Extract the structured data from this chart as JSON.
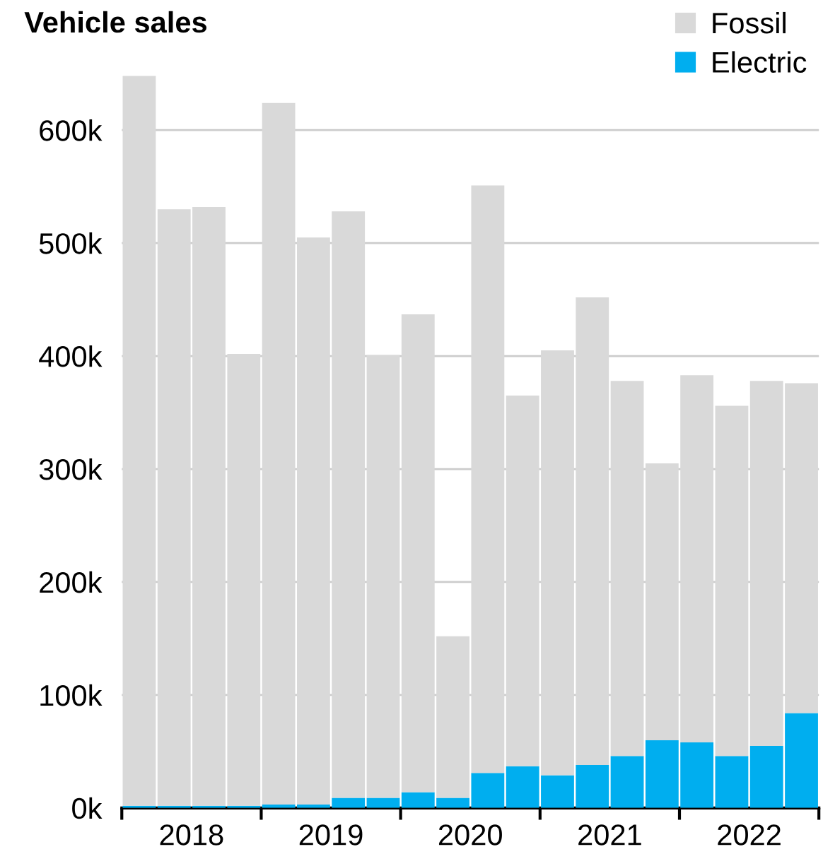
{
  "chart_data": {
    "type": "bar",
    "title": "Vehicle sales",
    "stacked": true,
    "x": [
      2018.125,
      2018.375,
      2018.625,
      2018.875,
      2019.125,
      2019.375,
      2019.625,
      2019.875,
      2020.125,
      2020.375,
      2020.625,
      2020.875,
      2021.125,
      2021.375,
      2021.625,
      2021.875,
      2022.125,
      2022.375,
      2022.625,
      2022.875
    ],
    "series": [
      {
        "name": "Electric",
        "color": "#00aeef",
        "values": [
          2000,
          2000,
          2000,
          2000,
          3000,
          3000,
          9000,
          9000,
          14000,
          9000,
          31000,
          37000,
          29000,
          38000,
          46000,
          60000,
          58000,
          46000,
          55000,
          84000
        ]
      },
      {
        "name": "Fossil",
        "color": "#d9d9d9",
        "values": [
          646000,
          528000,
          530000,
          400000,
          621000,
          502000,
          519000,
          392000,
          423000,
          143000,
          520000,
          328000,
          376000,
          414000,
          332000,
          245000,
          325000,
          310000,
          323000,
          292000
        ]
      }
    ],
    "xlim": [
      2018,
      2023
    ],
    "xticks": [
      {
        "value": 2018,
        "label": null
      },
      {
        "value": 2018.5,
        "label": "2018"
      },
      {
        "value": 2019,
        "label": null
      },
      {
        "value": 2019.5,
        "label": "2019"
      },
      {
        "value": 2020,
        "label": null
      },
      {
        "value": 2020.5,
        "label": "2020"
      },
      {
        "value": 2021,
        "label": null
      },
      {
        "value": 2021.5,
        "label": "2021"
      },
      {
        "value": 2022,
        "label": null
      },
      {
        "value": 2022.5,
        "label": "2022"
      },
      {
        "value": 2023,
        "label": null
      }
    ],
    "ylim": [
      0,
      650000
    ],
    "yticks": [
      {
        "value": 0,
        "label": "0k"
      },
      {
        "value": 100000,
        "label": "100k"
      },
      {
        "value": 200000,
        "label": "200k"
      },
      {
        "value": 300000,
        "label": "300k"
      },
      {
        "value": 400000,
        "label": "400k"
      },
      {
        "value": 500000,
        "label": "500k"
      },
      {
        "value": 600000,
        "label": "600k"
      }
    ],
    "grid": "y",
    "legend": "top right"
  }
}
